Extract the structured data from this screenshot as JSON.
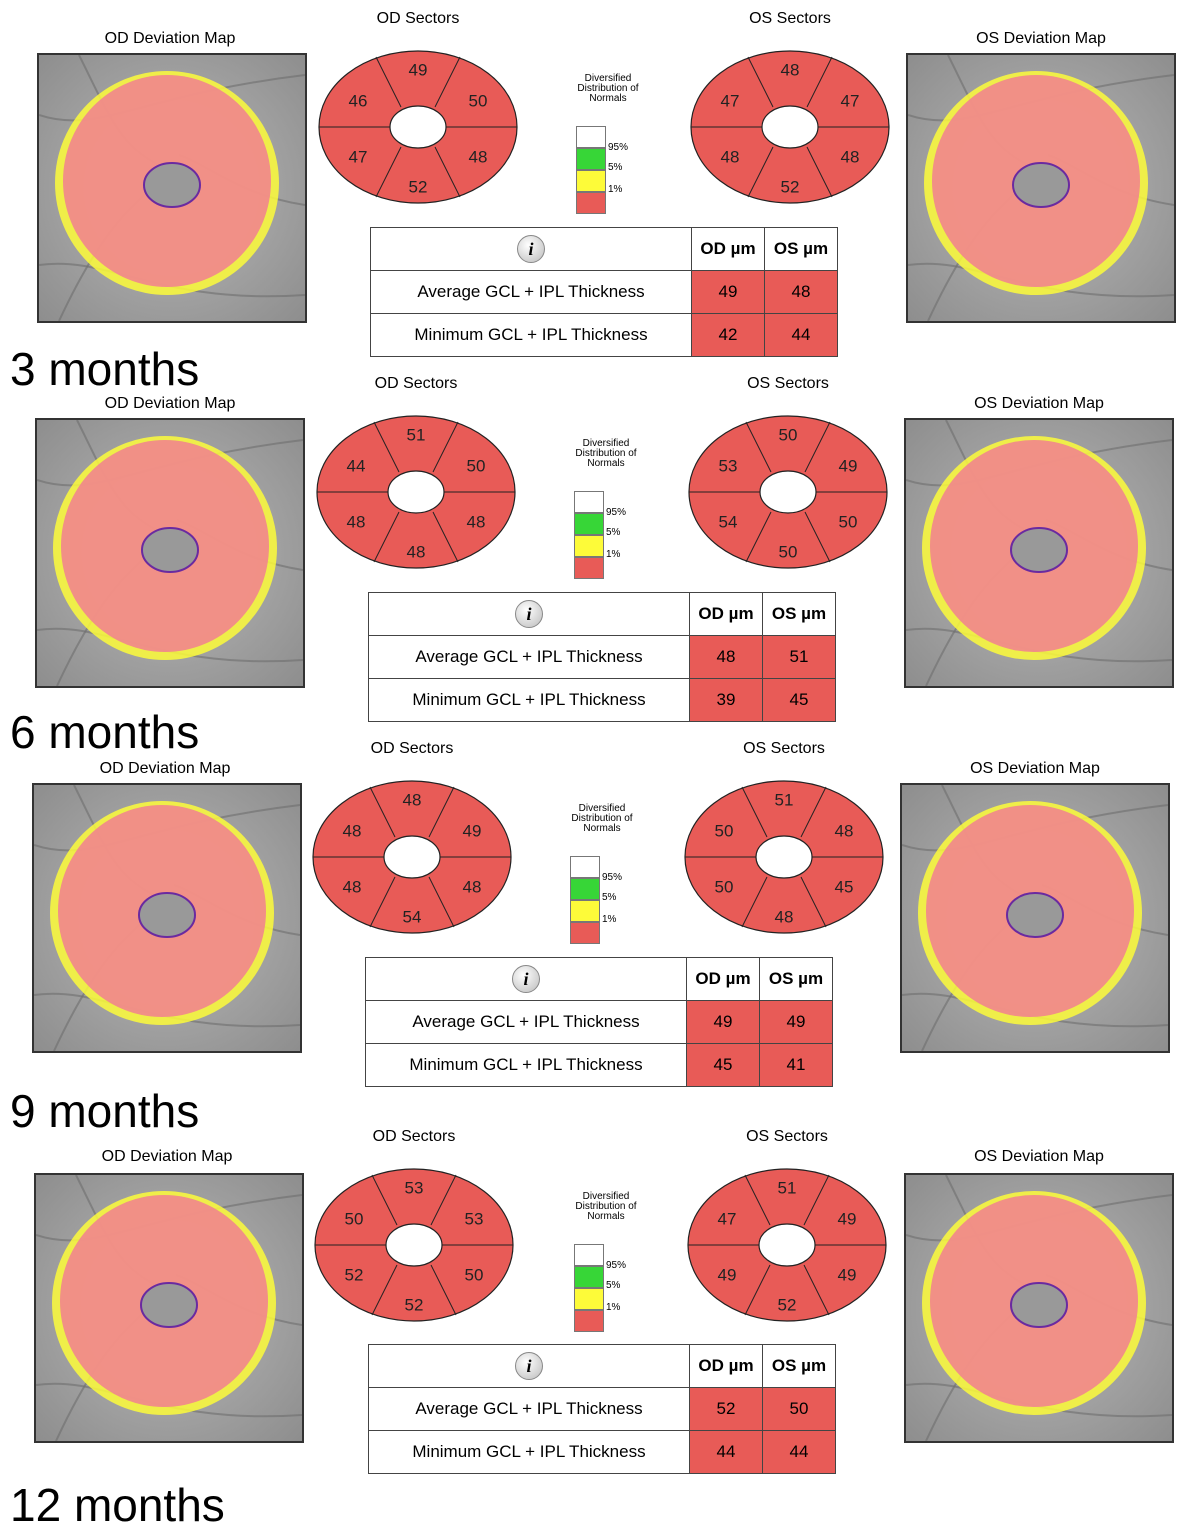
{
  "labels": {
    "od_map": "OD Deviation Map",
    "os_map": "OS Deviation Map",
    "od_sectors": "OD Sectors",
    "os_sectors": "OS Sectors",
    "legend_caption": "Diversified Distribution of Normals",
    "legend_95": "95%",
    "legend_5": "5%",
    "legend_1": "1%",
    "col_od": "OD µm",
    "col_os": "OS µm",
    "row_avg": "Average GCL + IPL Thickness",
    "row_min": "Minimum GCL + IPL Thickness",
    "info_icon": "i"
  },
  "colors": {
    "red": "#e85b57",
    "yellow": "#fdfb39",
    "green": "#37d637",
    "white": "#ffffff",
    "map_overlay": "#f08a8a"
  },
  "panels": [
    {
      "period": "3 months",
      "od_sectors": {
        "top": "49",
        "upper_right": "50",
        "lower_right": "48",
        "bottom": "52",
        "lower_left": "47",
        "upper_left": "46"
      },
      "os_sectors": {
        "top": "48",
        "upper_right": "47",
        "lower_right": "48",
        "bottom": "52",
        "lower_left": "48",
        "upper_left": "47"
      },
      "average": {
        "od": "49",
        "os": "48"
      },
      "minimum": {
        "od": "42",
        "os": "44"
      }
    },
    {
      "period": "6 months",
      "od_sectors": {
        "top": "51",
        "upper_right": "50",
        "lower_right": "48",
        "bottom": "48",
        "lower_left": "48",
        "upper_left": "44"
      },
      "os_sectors": {
        "top": "50",
        "upper_right": "49",
        "lower_right": "50",
        "bottom": "50",
        "lower_left": "54",
        "upper_left": "53"
      },
      "average": {
        "od": "48",
        "os": "51"
      },
      "minimum": {
        "od": "39",
        "os": "45"
      }
    },
    {
      "period": "9 months",
      "od_sectors": {
        "top": "48",
        "upper_right": "49",
        "lower_right": "48",
        "bottom": "54",
        "lower_left": "48",
        "upper_left": "48"
      },
      "os_sectors": {
        "top": "51",
        "upper_right": "48",
        "lower_right": "45",
        "bottom": "48",
        "lower_left": "50",
        "upper_left": "50"
      },
      "average": {
        "od": "49",
        "os": "49"
      },
      "minimum": {
        "od": "45",
        "os": "41"
      }
    },
    {
      "period": "12 months",
      "od_sectors": {
        "top": "53",
        "upper_right": "53",
        "lower_right": "50",
        "bottom": "52",
        "lower_left": "52",
        "upper_left": "50"
      },
      "os_sectors": {
        "top": "51",
        "upper_right": "49",
        "lower_right": "49",
        "bottom": "52",
        "lower_left": "49",
        "upper_left": "47"
      },
      "average": {
        "od": "52",
        "os": "50"
      },
      "minimum": {
        "od": "44",
        "os": "44"
      }
    }
  ]
}
